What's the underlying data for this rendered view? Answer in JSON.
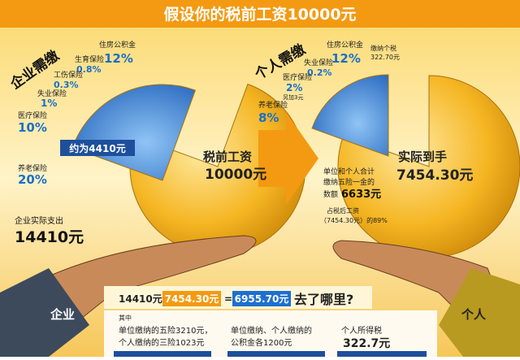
{
  "title": "假设你的税前工资10000元",
  "left": {
    "heading": "企业需缴",
    "items": [
      {
        "label": "住房公积金",
        "value": "12%"
      },
      {
        "label": "生育保险",
        "value": "0.8%"
      },
      {
        "label": "工伤保险",
        "value": "0.3%"
      },
      {
        "label": "失业保险",
        "value": "1%"
      },
      {
        "label": "医疗保险",
        "value": "10%"
      },
      {
        "label": "养老保险",
        "value": "20%"
      }
    ],
    "wedge_label": "约为4410元",
    "coin_label": "税前工资",
    "coin_value": "10000元",
    "total_label": "企业实际支出",
    "total_value": "14410元",
    "hand_label": "企业"
  },
  "right": {
    "heading": "个人需缴",
    "items": [
      {
        "label": "住房公积金",
        "value": "12%"
      },
      {
        "label": "失业保险",
        "value": "0.2%"
      },
      {
        "label": "医疗保险",
        "value": "2%"
      },
      {
        "label": "养老保险",
        "value": "8%"
      }
    ],
    "extra": "另加3元",
    "tax_label": "缴纳个税",
    "tax_value": "322.70元",
    "coin_label": "实际到手",
    "coin_value": "7454.30元",
    "note_lines": [
      "单位和个人合计",
      "缴纳五险一金的"
    ],
    "note_prefix": "数额",
    "note_value": "6633元",
    "share_lines": [
      "占税后工资",
      "（7454.30元）的89%"
    ],
    "hand_label": "个人"
  },
  "bottom": {
    "minuend": "14410元-",
    "subtrahend": "7454.30元",
    "equals": "=",
    "result": "6955.70元",
    "question": "去了哪里?",
    "intro": "其中",
    "col1": [
      "单位缴纳的五险3210元，",
      "个人缴纳的三险1023元"
    ],
    "col2": [
      "单位缴纳、个人缴纳的",
      "公积金各1200元"
    ],
    "col3": [
      "个人所得税",
      "322.7元"
    ]
  }
}
